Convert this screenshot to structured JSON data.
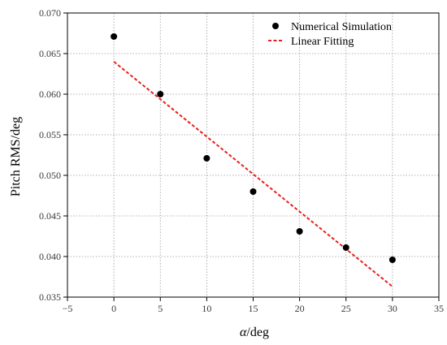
{
  "chart_data": {
    "type": "scatter",
    "xlabel_italic": "α",
    "xlabel_rest": "/deg",
    "ylabel": "Pitch RMS/deg",
    "xlim": [
      -5,
      35
    ],
    "ylim": [
      0.035,
      0.07
    ],
    "x_ticks": [
      "−5",
      "0",
      "5",
      "10",
      "15",
      "20",
      "25",
      "30",
      "35"
    ],
    "x_tick_values": [
      -5,
      0,
      5,
      10,
      15,
      20,
      25,
      30,
      35
    ],
    "y_ticks": [
      "0.035",
      "0.040",
      "0.045",
      "0.050",
      "0.055",
      "0.060",
      "0.065",
      "0.070"
    ],
    "y_tick_values": [
      0.035,
      0.04,
      0.045,
      0.05,
      0.055,
      0.06,
      0.065,
      0.07
    ],
    "grid": true,
    "legend_position": "top-right",
    "series": [
      {
        "name": "Numerical Simulation",
        "kind": "scatter",
        "color": "#000000",
        "x": [
          0,
          5,
          10,
          15,
          20,
          25,
          30
        ],
        "y": [
          0.0671,
          0.06,
          0.0521,
          0.048,
          0.0431,
          0.0411,
          0.0396
        ]
      },
      {
        "name": "Linear Fitting",
        "kind": "line",
        "style": "dashed",
        "color": "#e8201b",
        "x": [
          0,
          30
        ],
        "y": [
          0.064,
          0.0363
        ]
      }
    ]
  }
}
